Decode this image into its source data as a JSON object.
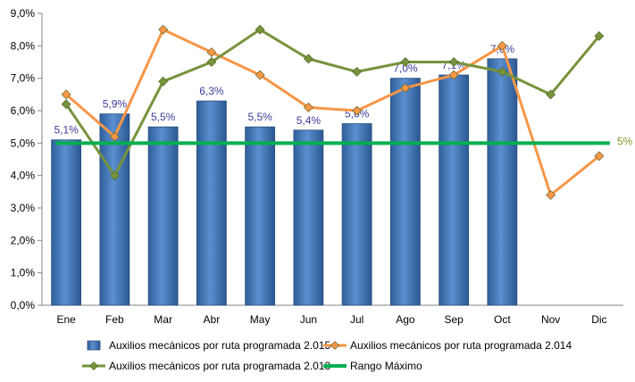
{
  "chart_data": {
    "type": "bar",
    "title": "",
    "xlabel": "",
    "ylabel": "",
    "categories": [
      "Ene",
      "Feb",
      "Mar",
      "Abr",
      "May",
      "Jun",
      "Jul",
      "Ago",
      "Sep",
      "Oct",
      "Nov",
      "Dic"
    ],
    "ylim": [
      0,
      9
    ],
    "yticks": [
      "0,0%",
      "1,0%",
      "2,0%",
      "3,0%",
      "4,0%",
      "5,0%",
      "6,0%",
      "7,0%",
      "8,0%",
      "9,0%"
    ],
    "grid": false,
    "legend_position": "bottom",
    "series": [
      {
        "name": "Auxilios mecánicos por ruta programada 2.015",
        "type": "bar",
        "color": "#4f81bd",
        "values": [
          5.1,
          5.9,
          5.5,
          6.3,
          5.5,
          5.4,
          5.6,
          7.0,
          7.1,
          7.6,
          null,
          null
        ],
        "labels": [
          "5,1%",
          "5,9%",
          "5,5%",
          "6,3%",
          "5,5%",
          "5,4%",
          "5,6%",
          "7,0%",
          "7,1%",
          "7,6%",
          "",
          ""
        ]
      },
      {
        "name": "Auxilios mecánicos por ruta programada 2.014",
        "type": "line",
        "color": "#f79646",
        "values": [
          6.5,
          5.2,
          8.5,
          7.8,
          7.1,
          6.1,
          6.0,
          6.7,
          7.1,
          8.0,
          3.4,
          4.6
        ]
      },
      {
        "name": "Auxilios mecánicos por ruta programada 2.013",
        "type": "line",
        "color": "#77933c",
        "values": [
          6.2,
          4.0,
          6.9,
          7.5,
          8.5,
          7.6,
          7.2,
          7.5,
          7.5,
          7.2,
          6.5,
          8.3
        ]
      },
      {
        "name": "Rango Máximo",
        "type": "line",
        "color": "#00b050",
        "values": [
          5.0,
          5.0,
          5.0,
          5.0,
          5.0,
          5.0,
          5.0,
          5.0,
          5.0,
          5.0,
          5.0,
          5.0
        ],
        "end_label": "5%",
        "end_label_color": "#8a9a2a"
      }
    ]
  }
}
